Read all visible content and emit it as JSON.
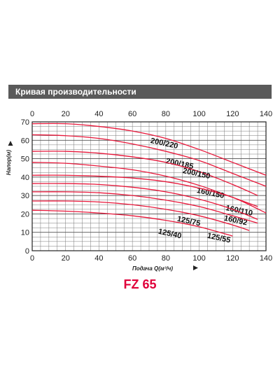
{
  "header": {
    "title": "Кривая производительности"
  },
  "footer": {
    "title": "FZ 65"
  },
  "colors": {
    "curve": "#e8173a",
    "grid": "#7a7a7a",
    "header_bg": "#5a5a5a",
    "footer": "#e0003a"
  },
  "chart_data": {
    "type": "line",
    "title": "Кривая производительности",
    "xlabel": "Подача Q(м³/ч)",
    "ylabel": "Напор(м)",
    "xlim": [
      0,
      140
    ],
    "ylim": [
      0,
      70
    ],
    "xticks": [
      0,
      20,
      40,
      60,
      80,
      100,
      120,
      140
    ],
    "yticks": [
      0,
      10,
      20,
      30,
      40,
      50,
      60,
      70
    ],
    "grid": true,
    "series": [
      {
        "name": "200/220",
        "x": [
          0,
          20,
          40,
          60,
          80,
          100,
          120,
          140
        ],
        "y": [
          69,
          69,
          67.5,
          65,
          61,
          55,
          48,
          41
        ]
      },
      {
        "name": "200/185",
        "x": [
          0,
          20,
          40,
          60,
          80,
          100,
          120,
          140
        ],
        "y": [
          63,
          62.5,
          61,
          58,
          54,
          49,
          42,
          35
        ]
      },
      {
        "name": "200/150",
        "x": [
          0,
          20,
          40,
          60,
          80,
          100,
          120,
          135
        ],
        "y": [
          54,
          54,
          53,
          51,
          48,
          43,
          36,
          30
        ]
      },
      {
        "name": "160/150",
        "x": [
          0,
          20,
          40,
          60,
          80,
          100,
          120,
          135
        ],
        "y": [
          48,
          47.5,
          46,
          44,
          40.5,
          35.5,
          29,
          24
        ]
      },
      {
        "name": "160/110",
        "x": [
          0,
          20,
          40,
          60,
          80,
          100,
          120,
          140
        ],
        "y": [
          41,
          41,
          40.5,
          39.5,
          37.5,
          34,
          29,
          20.5
        ]
      },
      {
        "name": "160/92",
        "x": [
          0,
          20,
          40,
          60,
          80,
          100,
          120,
          135
        ],
        "y": [
          36.5,
          36.5,
          36,
          34.5,
          32,
          28,
          22.5,
          17
        ]
      },
      {
        "name": "125/75",
        "x": [
          0,
          20,
          40,
          60,
          80,
          100,
          120,
          135
        ],
        "y": [
          32,
          32,
          31.5,
          30,
          27.5,
          24,
          19,
          15
        ]
      },
      {
        "name": "125/55",
        "x": [
          0,
          20,
          40,
          60,
          80,
          100,
          120,
          130
        ],
        "y": [
          27,
          27,
          26.5,
          25,
          22.5,
          19,
          14,
          11
        ]
      },
      {
        "name": "125/40",
        "x": [
          0,
          20,
          40,
          60,
          80,
          100,
          120
        ],
        "y": [
          22,
          21.5,
          20.5,
          19,
          16.5,
          13,
          8
        ]
      }
    ]
  }
}
